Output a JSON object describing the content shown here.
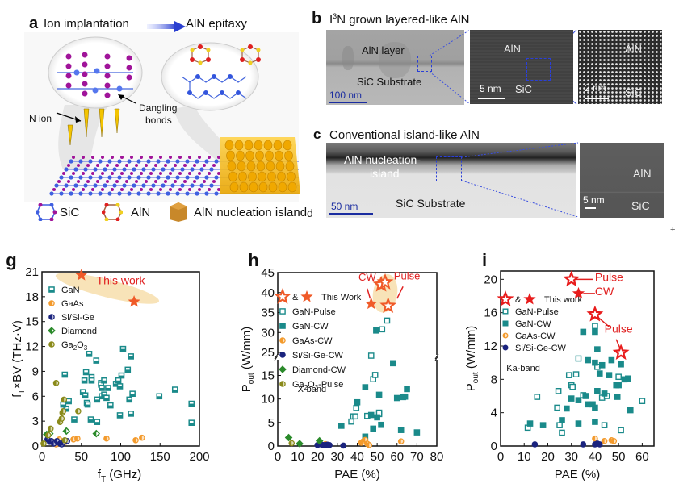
{
  "panel_a": {
    "letter": "a",
    "step1": "Ion implantation",
    "step2": "AlN epitaxy",
    "n_ion": "N ion",
    "dangling": [
      "Dangling",
      "bonds"
    ],
    "legend": [
      "SiC",
      "AlN",
      "AlN nucleation island"
    ]
  },
  "panel_b": {
    "letter": "b",
    "title_pre": "I",
    "title_sup": "3",
    "title_post": "N grown layered-like AlN",
    "img1": {
      "top": "AlN layer",
      "bottom": "SiC Substrate",
      "scale": "100 nm"
    },
    "img2": {
      "top": "AlN",
      "bottom": "SiC",
      "scale": "5 nm"
    },
    "img3": {
      "top": "AlN",
      "bottom": "SiC",
      "scale": "2 nm"
    }
  },
  "panel_c": {
    "letter": "c",
    "title": "Conventional island-like AlN",
    "img1": {
      "top": "AlN nucleation-",
      "top2": "island",
      "bottom": "SiC Substrate",
      "scale": "50 nm"
    },
    "img2": {
      "top": "AlN",
      "bottom": "SiC",
      "scale": "5 nm"
    }
  },
  "stray_marks": {
    "d": "d",
    "plus": "+"
  },
  "chart_data": [
    {
      "id": "g",
      "type": "scatter",
      "letter": "g",
      "xlabel": "f_T (GHz)",
      "ylabel": "f_T×BV (THz·V)",
      "xlim": [
        0,
        200
      ],
      "ylim": [
        0,
        21
      ],
      "xticks": [
        0,
        50,
        100,
        150,
        200
      ],
      "yticks": [
        0,
        3,
        6,
        9,
        12,
        15,
        18,
        21
      ],
      "legend_position": "top-left",
      "annotation": "This work",
      "series": [
        {
          "name": "GaN",
          "marker": "half-square",
          "color": "#1a8a8a",
          "points": [
            [
              29,
              8.6
            ],
            [
              31,
              4.5
            ],
            [
              34,
              5.4
            ],
            [
              27,
              5.0
            ],
            [
              41,
              3.2
            ],
            [
              52,
              6.5
            ],
            [
              54,
              7.9
            ],
            [
              55,
              6.1
            ],
            [
              56,
              8.9
            ],
            [
              57,
              5.2
            ],
            [
              58,
              5.0
            ],
            [
              60,
              11.1
            ],
            [
              63,
              8.3
            ],
            [
              63,
              7.9
            ],
            [
              62,
              3.2
            ],
            [
              69,
              10.3
            ],
            [
              70,
              5.6
            ],
            [
              70,
              2.9
            ],
            [
              75,
              7.6
            ],
            [
              75,
              7.4
            ],
            [
              76,
              6.0
            ],
            [
              76,
              7.0
            ],
            [
              79,
              7.9
            ],
            [
              79,
              6.2
            ],
            [
              82,
              5.8
            ],
            [
              84,
              7.0
            ],
            [
              87,
              4.9
            ],
            [
              94,
              7.5
            ],
            [
              97,
              7.9
            ],
            [
              99,
              7.2
            ],
            [
              99,
              3.7
            ],
            [
              101,
              8.5
            ],
            [
              103,
              11.7
            ],
            [
              109,
              9.2
            ],
            [
              111,
              5.6
            ],
            [
              113,
              3.9
            ],
            [
              113,
              10.8
            ],
            [
              115,
              6.3
            ],
            [
              149,
              6.0
            ],
            [
              169,
              6.8
            ],
            [
              190,
              5.1
            ],
            [
              190,
              2.8
            ]
          ]
        },
        {
          "name": "GaAs",
          "marker": "half-circle",
          "color": "#f39a2c",
          "points": [
            [
              14,
              0.5
            ],
            [
              16,
              0.3
            ],
            [
              18,
              0.2
            ],
            [
              20,
              0.4
            ],
            [
              22,
              0.8
            ],
            [
              30,
              0.5
            ],
            [
              40,
              0.8
            ],
            [
              45,
              0.9
            ],
            [
              82,
              0.9
            ],
            [
              119,
              0.7
            ],
            [
              127,
              1.0
            ]
          ]
        },
        {
          "name": "Si/Si-Ge",
          "marker": "half-circle",
          "color": "#1a237e",
          "points": [
            [
              7,
              0.8
            ],
            [
              10,
              0.5
            ],
            [
              12,
              0.6
            ],
            [
              15,
              0.3
            ],
            [
              19,
              0.6
            ],
            [
              23,
              0.3
            ],
            [
              25,
              0.2
            ],
            [
              27,
              0.4
            ],
            [
              32,
              0.6
            ]
          ]
        },
        {
          "name": "Diamond",
          "marker": "half-diamond",
          "color": "#2a8a2a",
          "points": [
            [
              6,
              1.4
            ],
            [
              10,
              1.5
            ],
            [
              31,
              1.8
            ],
            [
              69,
              1.5
            ]
          ]
        },
        {
          "name": "Ga2O3",
          "marker": "half-circle",
          "color": "#8a8a1a",
          "points": [
            [
              2,
              0.3
            ],
            [
              8,
              1.3
            ],
            [
              11,
              2.1
            ],
            [
              18,
              7.6
            ],
            [
              23,
              2.9
            ],
            [
              25,
              3.3
            ],
            [
              26,
              4.0
            ],
            [
              27,
              4.2
            ],
            [
              28,
              5.6
            ],
            [
              29,
              0.7
            ],
            [
              46,
              4.2
            ]
          ]
        },
        {
          "name": "This work",
          "marker": "star",
          "color": "#f05a28",
          "points": [
            [
              50,
              20.6
            ],
            [
              117,
              17.4
            ]
          ]
        }
      ]
    },
    {
      "id": "h",
      "type": "scatter",
      "letter": "h",
      "xlabel": "PAE (%)",
      "ylabel": "P_out (W/mm)",
      "xlim": [
        0,
        80
      ],
      "ylim_lower": [
        0,
        18
      ],
      "ylim_upper": [
        24,
        45
      ],
      "xticks": [
        0,
        10,
        20,
        30,
        40,
        50,
        60,
        70,
        80
      ],
      "yticks_lower": [
        0,
        5,
        10,
        15
      ],
      "yticks_upper": [
        25,
        30,
        35,
        40,
        45
      ],
      "legend_position": "top-left",
      "band_label": "X-band",
      "annotations": [
        "CW",
        "Pulse"
      ],
      "legend_amp": "&",
      "legend_this": "This Work",
      "series": [
        {
          "name": "GaN-Pulse",
          "marker": "open-square",
          "color": "#1a8a8a",
          "points": [
            [
              37,
              5.2
            ],
            [
              38,
              6.3
            ],
            [
              39,
              6.3
            ],
            [
              39.5,
              8.1
            ],
            [
              45,
              6.4
            ],
            [
              47,
              24.2
            ],
            [
              48,
              14.2
            ],
            [
              49,
              15.1
            ],
            [
              51,
              6.8
            ],
            [
              51,
              7.1
            ],
            [
              52.5,
              30.8
            ],
            [
              55,
              33.0
            ]
          ]
        },
        {
          "name": "GaN-CW",
          "marker": "filled-square",
          "color": "#1a8a8a",
          "points": [
            [
              32,
              4.3
            ],
            [
              40,
              9.3
            ],
            [
              44,
              12.5
            ],
            [
              44,
              2.0
            ],
            [
              47,
              6.6
            ],
            [
              48,
              3.7
            ],
            [
              49.5,
              30.5
            ],
            [
              50,
              6.1
            ],
            [
              51,
              10.9
            ],
            [
              52,
              4.5
            ],
            [
              58,
              17.6
            ],
            [
              60,
              10.2
            ],
            [
              62,
              3.4
            ],
            [
              63,
              10.4
            ],
            [
              64,
              10.5
            ],
            [
              65,
              12.1
            ],
            [
              70,
              2.9
            ]
          ]
        },
        {
          "name": "GaAs-CW",
          "marker": "half-circle",
          "color": "#f39a2c",
          "points": [
            [
              24,
              0.4
            ],
            [
              42,
              0.7
            ],
            [
              43,
              1.0
            ],
            [
              44,
              1.3
            ],
            [
              45,
              0.5
            ],
            [
              46,
              0.2
            ],
            [
              62,
              1.0
            ]
          ]
        },
        {
          "name": "Si/Si-Ge-CW",
          "marker": "filled-circle",
          "color": "#1a237e",
          "points": [
            [
              20,
              0.2
            ],
            [
              22,
              0.3
            ],
            [
              23,
              0.2
            ],
            [
              24,
              0.2
            ],
            [
              25,
              0.3
            ],
            [
              26,
              0.2
            ],
            [
              33,
              0.1
            ]
          ]
        },
        {
          "name": "Diamond-CW",
          "marker": "filled-diamond",
          "color": "#2a8a2a",
          "points": [
            [
              5.5,
              1.8
            ],
            [
              11,
              0.5
            ],
            [
              21,
              1.1
            ]
          ]
        },
        {
          "name": "Ga2O3-Pulse",
          "marker": "half-circle",
          "color": "#8a8a1a",
          "points": [
            [
              7,
              0.6
            ]
          ]
        },
        {
          "name": "This Work (CW)",
          "marker": "filled-star",
          "color": "#f05a28",
          "points": [
            [
              47,
              37.2
            ]
          ]
        },
        {
          "name": "This Work (Pulse)",
          "marker": "open-star",
          "color": "#f05a28",
          "points": [
            [
              52,
              42.0
            ],
            [
              54,
              42.6
            ],
            [
              55.5,
              36.7
            ]
          ]
        }
      ]
    },
    {
      "id": "i",
      "type": "scatter",
      "letter": "i",
      "xlabel": "PAE (%)",
      "ylabel": "P_out (W/mm)",
      "xlim": [
        0,
        65
      ],
      "ylim": [
        0,
        21
      ],
      "xticks": [
        0,
        10,
        20,
        30,
        40,
        50,
        60
      ],
      "yticks": [
        0,
        4,
        8,
        12,
        16,
        20
      ],
      "legend_position": "top-left",
      "band_label": "Ka-band",
      "annotations": [
        "Pulse",
        "CW",
        "Pulse"
      ],
      "legend_amp": "&",
      "legend_this": "This work",
      "series": [
        {
          "name": "GaN-Pulse",
          "marker": "open-square",
          "color": "#1a8a8a",
          "points": [
            [
              11.5,
              2.2
            ],
            [
              15.5,
              5.9
            ],
            [
              24,
              4.6
            ],
            [
              24.5,
              6.6
            ],
            [
              25,
              2.5
            ],
            [
              26,
              1.6
            ],
            [
              29,
              8.5
            ],
            [
              30,
              7.3
            ],
            [
              30.5,
              7.1
            ],
            [
              32,
              8.6
            ],
            [
              33,
              10.5
            ],
            [
              35,
              6.1
            ],
            [
              40,
              14.4
            ],
            [
              41,
              9.5
            ],
            [
              43,
              5.8
            ],
            [
              44,
              2.5
            ],
            [
              45,
              6.0
            ],
            [
              50,
              8.3
            ],
            [
              51,
              1.9
            ],
            [
              60,
              5.4
            ]
          ]
        },
        {
          "name": "GaN-CW",
          "marker": "filled-square",
          "color": "#1a8a8a",
          "points": [
            [
              12.5,
              2.7
            ],
            [
              18,
              2.5
            ],
            [
              26,
              3.1
            ],
            [
              28,
              4.5
            ],
            [
              30,
              5.7
            ],
            [
              33,
              2.7
            ],
            [
              33,
              5.5
            ],
            [
              35,
              13.7
            ],
            [
              36,
              6.0
            ],
            [
              37,
              10.3
            ],
            [
              37,
              5.0
            ],
            [
              39,
              5.0
            ],
            [
              40,
              13.7
            ],
            [
              40,
              10.0
            ],
            [
              40,
              4.6
            ],
            [
              40,
              2.9
            ],
            [
              41,
              11.6
            ],
            [
              41,
              6.6
            ],
            [
              42,
              8.7
            ],
            [
              43,
              9.7
            ],
            [
              44,
              6.3
            ],
            [
              46,
              8.5
            ],
            [
              47,
              10.3
            ],
            [
              49,
              7.3
            ],
            [
              49.5,
              5.9
            ],
            [
              50,
              7.3
            ],
            [
              51,
              9.8
            ],
            [
              52.5,
              8.0
            ],
            [
              54,
              8.1
            ],
            [
              55,
              4.3
            ]
          ]
        },
        {
          "name": "GaAs-CW",
          "marker": "half-circle",
          "color": "#f39a2c",
          "points": [
            [
              40,
              0.9
            ],
            [
              44,
              0.6
            ],
            [
              47,
              0.7
            ],
            [
              48,
              0.6
            ]
          ]
        },
        {
          "name": "Si/Si-Ge-CW",
          "marker": "filled-circle",
          "color": "#1a237e",
          "points": [
            [
              14.5,
              0.2
            ],
            [
              35,
              0.2
            ],
            [
              40,
              0.2
            ],
            [
              41,
              0.3
            ],
            [
              42,
              0.2
            ]
          ]
        },
        {
          "name": "This work (CW)",
          "marker": "filled-star",
          "color": "#e81c1c",
          "points": [
            [
              33,
              18.3
            ]
          ]
        },
        {
          "name": "This work (Pulse)",
          "marker": "open-star",
          "color": "#e81c1c",
          "points": [
            [
              30,
              20.0
            ],
            [
              40,
              15.8
            ],
            [
              51,
              11.2
            ]
          ]
        }
      ]
    }
  ]
}
